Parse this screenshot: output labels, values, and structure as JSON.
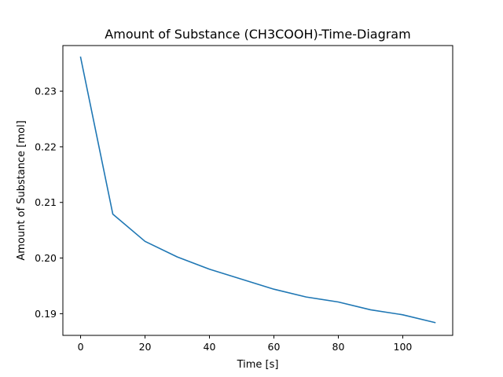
{
  "chart_data": {
    "type": "line",
    "title": "Amount of Substance (CH3COOH)-Time-Diagram",
    "xlabel": "Time [s]",
    "ylabel": "Amount of Substance [mol]",
    "xlim": [
      -5.5,
      115.5
    ],
    "ylim": [
      0.1861,
      0.2382
    ],
    "xticks": [
      0,
      20,
      40,
      60,
      80,
      100
    ],
    "xtick_labels": [
      "0",
      "20",
      "40",
      "60",
      "80",
      "100"
    ],
    "yticks": [
      0.19,
      0.2,
      0.21,
      0.22,
      0.23
    ],
    "ytick_labels": [
      "0.19",
      "0.20",
      "0.21",
      "0.22",
      "0.23"
    ],
    "grid": false,
    "series": [
      {
        "color": "#1f77b4",
        "x": [
          0,
          10,
          20,
          30,
          40,
          50,
          60,
          70,
          80,
          90,
          100,
          110
        ],
        "y": [
          0.2361,
          0.2079,
          0.203,
          0.2002,
          0.198,
          0.1962,
          0.1944,
          0.193,
          0.1921,
          0.1907,
          0.1898,
          0.1884
        ]
      }
    ]
  }
}
